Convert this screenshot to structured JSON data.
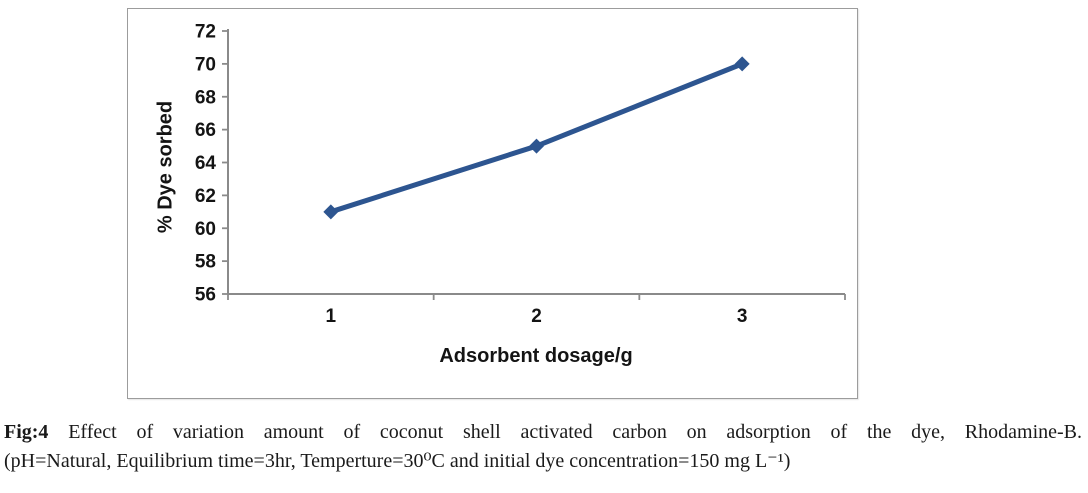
{
  "chart_data": {
    "type": "line",
    "title": "",
    "categories": [
      "1",
      "2",
      "3"
    ],
    "series": [
      {
        "name": "% Dye sorbed",
        "values": [
          61,
          65,
          70
        ]
      }
    ],
    "xlabel": "Adsorbent dosage/g",
    "ylabel": "% Dye sorbed",
    "ylim": [
      56,
      72
    ],
    "yticks": [
      56,
      58,
      60,
      62,
      64,
      66,
      68,
      70,
      72
    ],
    "grid": false,
    "legend": "none",
    "marker": "diamond",
    "colors": {
      "line": "#2d5590",
      "axis": "#8a8a8a",
      "tick_text": "#141414",
      "frame_border": "#9c9c9c"
    }
  },
  "caption": {
    "fig_label": "Fig:4",
    "line1": "Effect of variation amount of coconut shell activated carbon on adsorption of the dye, Rhodamine-B.",
    "line2": "(pH=Natural, Equilibrium time=3hr, Temperture=30⁰C and initial dye concentration=150 mg L⁻¹)"
  }
}
